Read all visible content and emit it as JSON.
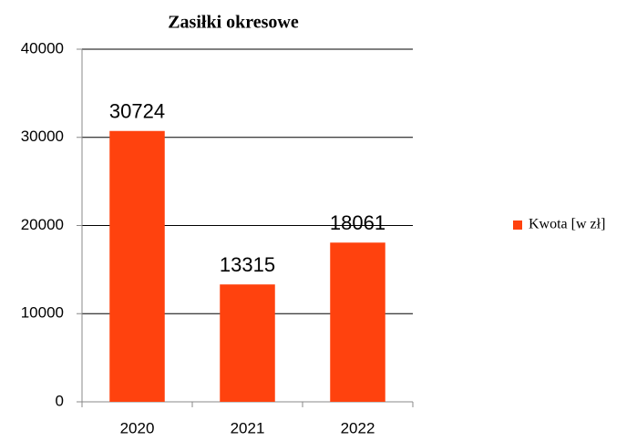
{
  "chart_data": {
    "type": "bar",
    "title": "Zasiłki okresowe",
    "categories": [
      "2020",
      "2021",
      "2022"
    ],
    "series": [
      {
        "name": "Kwota [w zł]",
        "color": "#ff420e",
        "values": [
          30724,
          13315,
          18061
        ]
      }
    ],
    "ylim": [
      0,
      40000
    ],
    "yticks": [
      0,
      10000,
      20000,
      30000,
      40000
    ],
    "grid": true,
    "legend": "right"
  }
}
